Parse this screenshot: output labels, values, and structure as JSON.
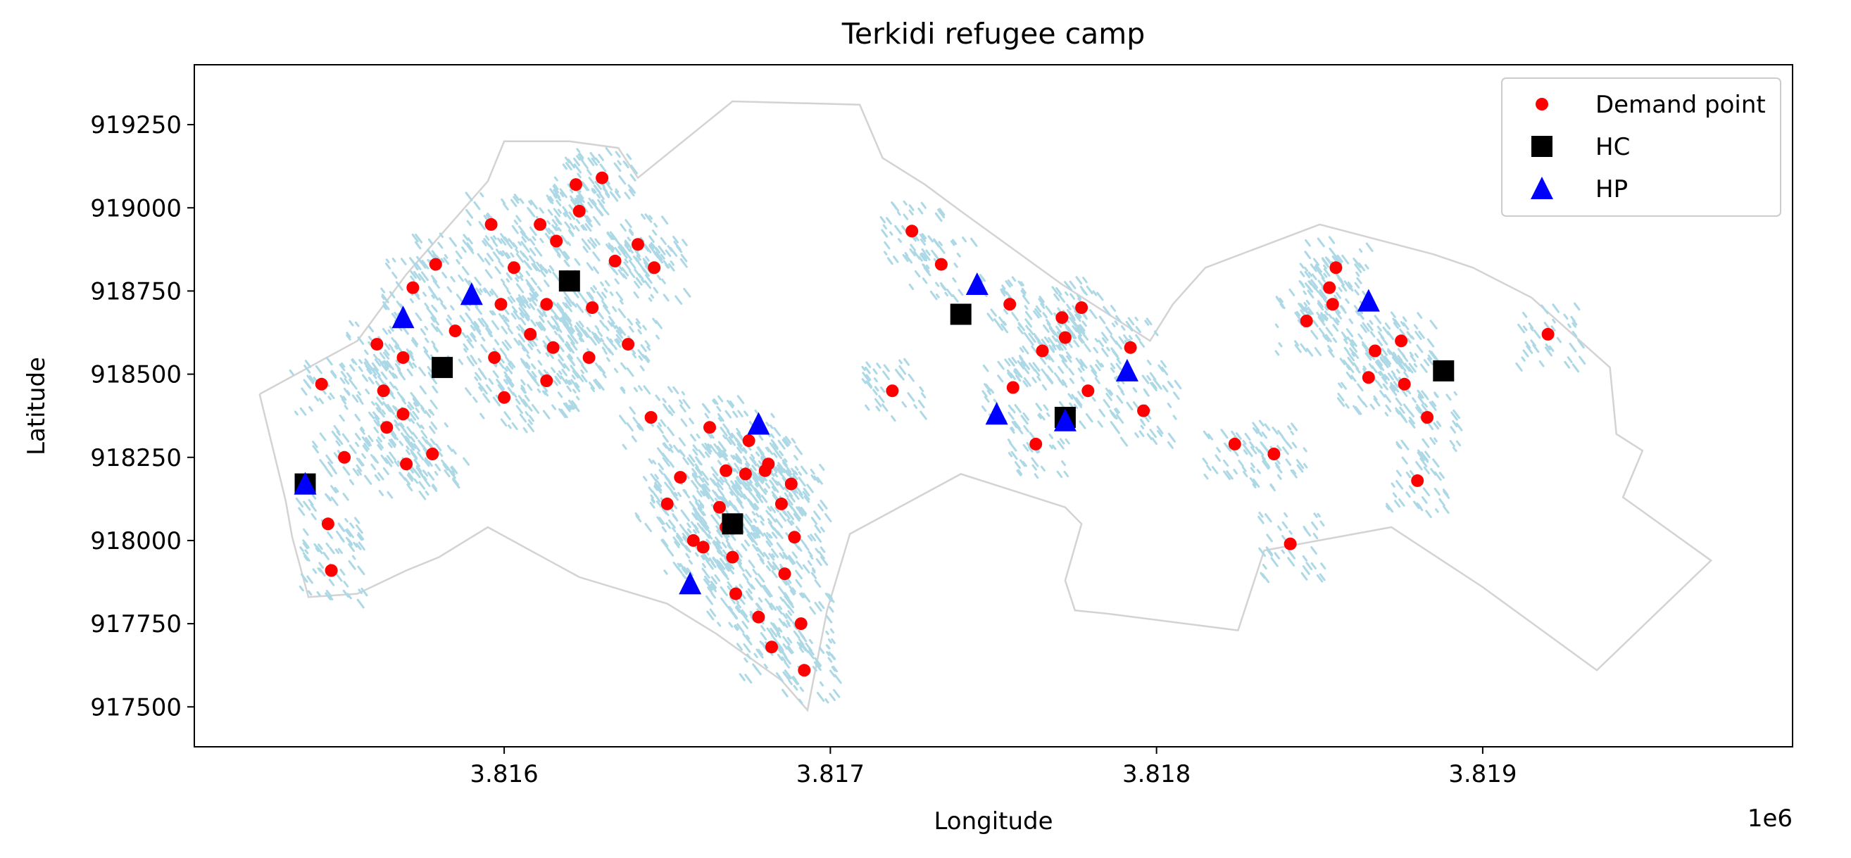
{
  "chart_data": {
    "type": "scatter",
    "title": "Terkidi refugee camp",
    "xlabel": "Longitude",
    "ylabel": "Latitude",
    "x_offset_label": "1e6",
    "xlim": [
      3815050,
      3819950
    ],
    "ylim": [
      917380,
      919430
    ],
    "xticks": [
      3816000,
      3817000,
      3818000,
      3819000
    ],
    "xtick_labels": [
      "3.816",
      "3.817",
      "3.818",
      "3.819"
    ],
    "yticks": [
      917500,
      917750,
      918000,
      918250,
      918500,
      918750,
      919000,
      919250
    ],
    "ytick_labels": [
      "917500",
      "917750",
      "918000",
      "918250",
      "918500",
      "918750",
      "919000",
      "919250"
    ],
    "grid": false,
    "legend_position": "top-right",
    "colors": {
      "boundary": "#d3d3d3",
      "buildings": "#add8e6",
      "demand": "#ff0000",
      "hc": "#000000",
      "hp": "#0000ff"
    },
    "boundary": {
      "west": [
        [
          3815250,
          918440
        ],
        [
          3815550,
          918600
        ],
        [
          3815700,
          918800
        ],
        [
          3815950,
          919080
        ],
        [
          3816000,
          919200
        ],
        [
          3816200,
          919200
        ],
        [
          3816350,
          919180
        ],
        [
          3816410,
          919090
        ],
        [
          3816700,
          919320
        ],
        [
          3817090,
          919310
        ],
        [
          3817160,
          919150
        ],
        [
          3817290,
          919070
        ],
        [
          3817400,
          918990
        ],
        [
          3817710,
          918770
        ],
        [
          3817980,
          918600
        ],
        [
          3818050,
          918710
        ],
        [
          3818150,
          918820
        ],
        [
          3818500,
          918950
        ],
        [
          3818850,
          918860
        ],
        [
          3818970,
          918820
        ],
        [
          3819150,
          918730
        ],
        [
          3819390,
          918520
        ],
        [
          3819410,
          918320
        ],
        [
          3819490,
          918270
        ],
        [
          3819430,
          918130
        ],
        [
          3819700,
          917940
        ],
        [
          3819350,
          917610
        ],
        [
          3819000,
          917860
        ],
        [
          3818720,
          918040
        ],
        [
          3818330,
          917970
        ],
        [
          3818250,
          917730
        ],
        [
          3817850,
          917780
        ],
        [
          3817750,
          917790
        ],
        [
          3817720,
          917880
        ],
        [
          3817770,
          918050
        ],
        [
          3817720,
          918100
        ],
        [
          3817400,
          918200
        ],
        [
          3817060,
          918020
        ],
        [
          3816990,
          917790
        ],
        [
          3816930,
          917490
        ],
        [
          3816850,
          917580
        ],
        [
          3816650,
          917720
        ],
        [
          3816500,
          917810
        ],
        [
          3816230,
          917890
        ],
        [
          3815950,
          918040
        ],
        [
          3815800,
          917950
        ],
        [
          3815700,
          917910
        ],
        [
          3815550,
          917840
        ],
        [
          3815400,
          917830
        ],
        [
          3815350,
          918010
        ],
        [
          3815330,
          918120
        ],
        [
          3815250,
          918440
        ]
      ]
    },
    "series": [
      {
        "name": "Demand point",
        "marker": "circle",
        "x": [
          3815440,
          3815510,
          3815460,
          3815470,
          3815610,
          3815640,
          3815630,
          3815690,
          3815700,
          3815690,
          3815720,
          3815790,
          3815780,
          3815850,
          3815960,
          3815970,
          3816000,
          3815990,
          3816030,
          3816080,
          3816110,
          3816130,
          3816130,
          3816150,
          3816160,
          3816220,
          3816230,
          3816260,
          3816270,
          3816300,
          3816340,
          3816410,
          3816460,
          3816380,
          3816450,
          3816500,
          3816540,
          3816580,
          3816610,
          3816630,
          3816660,
          3816680,
          3816700,
          3816710,
          3816750,
          3816780,
          3816800,
          3816820,
          3816850,
          3816860,
          3816880,
          3816890,
          3816910,
          3816920,
          3816680,
          3816740,
          3816810,
          3817190,
          3817250,
          3817340,
          3817550,
          3817560,
          3817630,
          3817650,
          3817710,
          3817720,
          3817770,
          3817790,
          3817920,
          3817960,
          3818240,
          3818360,
          3818410,
          3818460,
          3818530,
          3818540,
          3818550,
          3818650,
          3818670,
          3818750,
          3818760,
          3818800,
          3818830,
          3819200
        ],
        "y": [
          918470,
          918250,
          918050,
          917910,
          918590,
          918340,
          918450,
          918550,
          918230,
          918380,
          918760,
          918830,
          918260,
          918630,
          918950,
          918550,
          918430,
          918710,
          918820,
          918620,
          918950,
          918710,
          918480,
          918580,
          918900,
          919070,
          918990,
          918550,
          918700,
          919090,
          918840,
          918890,
          918820,
          918590,
          918370,
          918110,
          918190,
          918000,
          917980,
          918340,
          918100,
          918210,
          917950,
          917840,
          918300,
          917770,
          918210,
          917680,
          918110,
          917900,
          918170,
          918010,
          917750,
          917610,
          918040,
          918200,
          918230,
          918450,
          918930,
          918830,
          918710,
          918460,
          918290,
          918570,
          918670,
          918610,
          918700,
          918450,
          918580,
          918390,
          918290,
          918260,
          917990,
          918660,
          918760,
          918710,
          918820,
          918490,
          918570,
          918600,
          918470,
          918180,
          918370,
          918620
        ]
      },
      {
        "name": "HC",
        "marker": "square",
        "x": [
          3815390,
          3815810,
          3816200,
          3816700,
          3817400,
          3817720,
          3818880
        ],
        "y": [
          918170,
          918520,
          918780,
          918050,
          918680,
          918370,
          918510
        ]
      },
      {
        "name": "HP",
        "marker": "triangle",
        "x": [
          3815390,
          3815690,
          3815900,
          3816570,
          3816780,
          3817450,
          3817510,
          3817720,
          3817910,
          3818650
        ],
        "y": [
          918170,
          918670,
          918740,
          917870,
          918350,
          918770,
          918380,
          918360,
          918510,
          918720
        ]
      }
    ]
  }
}
